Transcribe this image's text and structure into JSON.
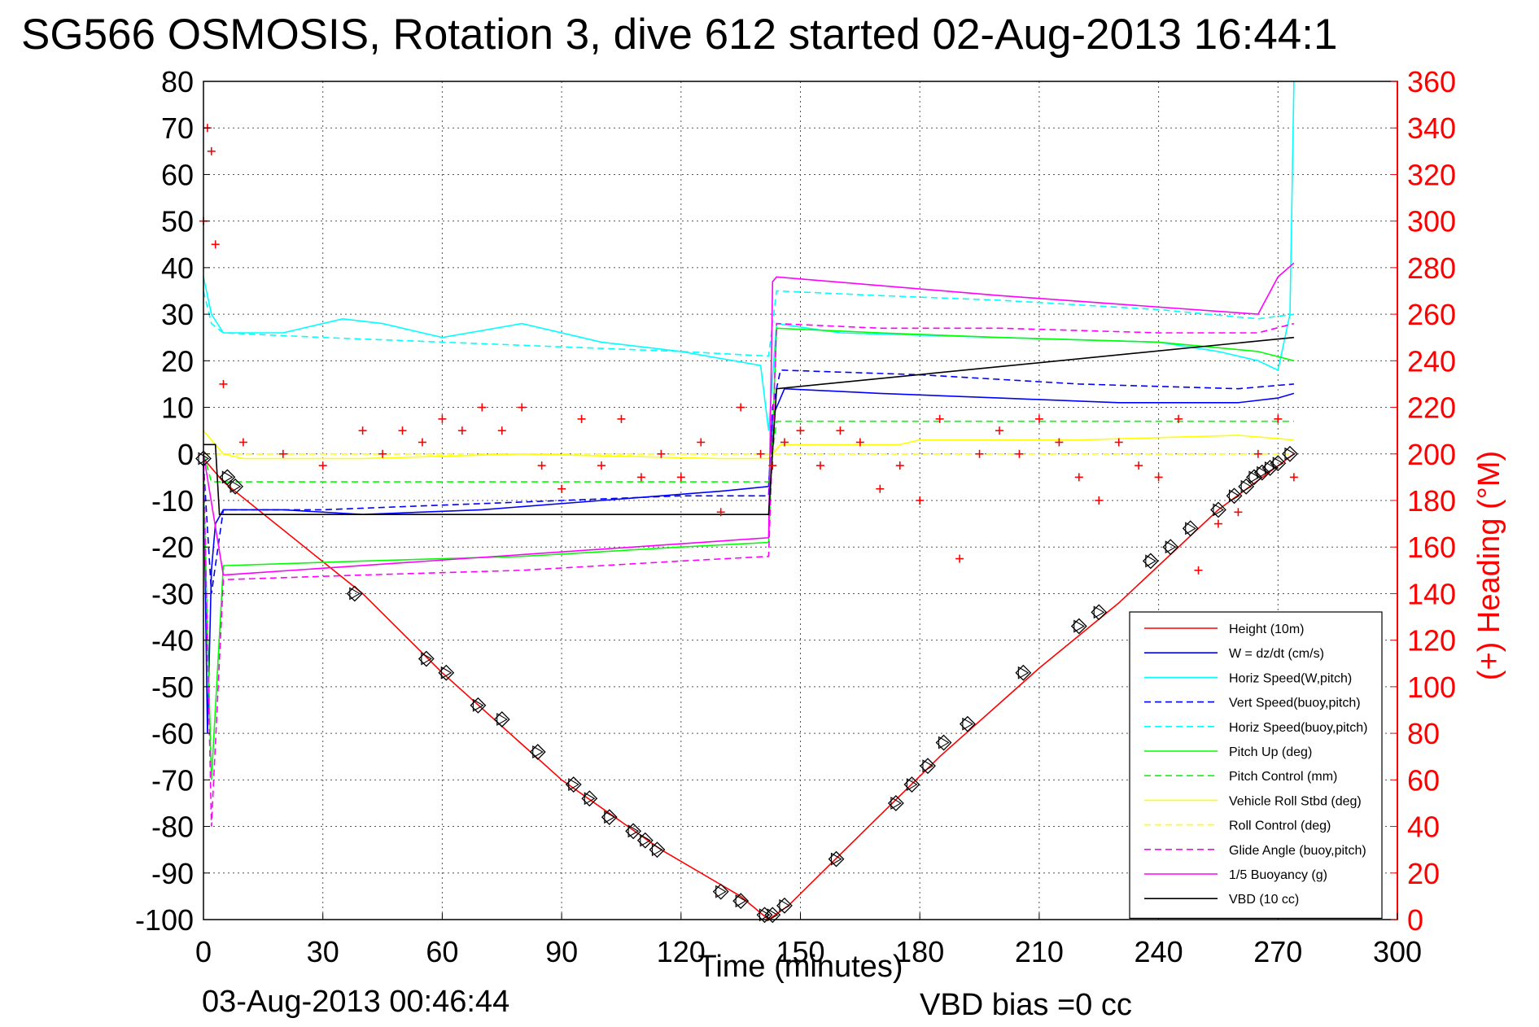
{
  "title": "SG566 OSMOSIS, Rotation 3, dive 612 started 02-Aug-2013 16:44:1",
  "footer": {
    "date": "03-Aug-2013 00:46:44",
    "vbd_bias": "VBD bias =0 cc"
  },
  "chart_data": {
    "type": "line",
    "xlabel": "Time (minutes)",
    "ylabel_right": "(+) Heading (°M)",
    "xlim": [
      0,
      300
    ],
    "ylim": [
      -100,
      80
    ],
    "ylim_right": [
      0,
      360
    ],
    "xticks": [
      0,
      30,
      60,
      90,
      120,
      150,
      180,
      210,
      240,
      270,
      300
    ],
    "yticks": [
      -100,
      -90,
      -80,
      -70,
      -60,
      -50,
      -40,
      -30,
      -20,
      -10,
      0,
      10,
      20,
      30,
      40,
      50,
      60,
      70,
      80
    ],
    "yticks_right": [
      0,
      20,
      40,
      60,
      80,
      100,
      120,
      140,
      160,
      180,
      200,
      220,
      240,
      260,
      280,
      300,
      320,
      340,
      360
    ],
    "grid": true,
    "legend_position": "bottom-right",
    "colors": {
      "red": "#ff0000",
      "blue": "#0000ff",
      "cyan": "#00ffff",
      "green": "#00ff00",
      "yellow": "#ffff00",
      "magenta": "#ff00ff",
      "black": "#000000"
    },
    "series": [
      {
        "name": "Height (10m)",
        "color": "#ff0000",
        "style": "solid",
        "x": [
          0,
          5,
          40,
          60,
          90,
          115,
          135,
          142,
          147,
          160,
          185,
          210,
          230,
          255,
          274
        ],
        "y": [
          -1,
          -6,
          -30,
          -47,
          -70,
          -85,
          -95,
          -100,
          -97,
          -86,
          -65,
          -46,
          -32,
          -12,
          0
        ]
      },
      {
        "name": "W = dz/dt (cm/s)",
        "color": "#0000ff",
        "style": "solid",
        "x": [
          0,
          1,
          2,
          3,
          5,
          20,
          40,
          70,
          100,
          130,
          142,
          143,
          146,
          170,
          200,
          230,
          260,
          270,
          274
        ],
        "y": [
          -2,
          -60,
          -25,
          -15,
          -12,
          -12,
          -13,
          -12,
          -10,
          -8,
          -7,
          8,
          14,
          13,
          12,
          11,
          11,
          12,
          13
        ]
      },
      {
        "name": "Horiz Speed(W,pitch)",
        "color": "#00ffff",
        "style": "solid",
        "x": [
          0,
          2,
          5,
          20,
          35,
          45,
          60,
          80,
          100,
          120,
          140,
          142,
          144,
          160,
          200,
          240,
          255,
          265,
          270,
          273,
          274
        ],
        "y": [
          38,
          30,
          26,
          26,
          29,
          28,
          25,
          28,
          24,
          22,
          19,
          5,
          28,
          26,
          25,
          24,
          22,
          20,
          18,
          30,
          80
        ]
      },
      {
        "name": "Vert Speed(buoy,pitch)",
        "color": "#0000ff",
        "style": "dashed",
        "x": [
          0,
          2,
          5,
          30,
          60,
          90,
          120,
          142,
          143,
          145,
          180,
          220,
          260,
          274
        ],
        "y": [
          -2,
          -30,
          -12,
          -12,
          -11,
          -10,
          -9,
          -9,
          10,
          18,
          17,
          15,
          14,
          15
        ]
      },
      {
        "name": "Horiz Speed(buoy,pitch)",
        "color": "#00ffff",
        "style": "dashed",
        "x": [
          0,
          2,
          5,
          30,
          60,
          90,
          120,
          142,
          144,
          170,
          200,
          240,
          265,
          274
        ],
        "y": [
          35,
          28,
          26,
          25,
          24,
          23,
          22,
          21,
          35,
          34,
          33,
          31,
          29,
          30
        ]
      },
      {
        "name": "Pitch Up (deg)",
        "color": "#00ff00",
        "style": "solid",
        "x": [
          0,
          2,
          5,
          40,
          80,
          120,
          142,
          144,
          170,
          200,
          240,
          265,
          274
        ],
        "y": [
          -5,
          -70,
          -24,
          -23,
          -22,
          -20,
          -19,
          27,
          26,
          25,
          24,
          22,
          20
        ]
      },
      {
        "name": "Pitch Control (mm)",
        "color": "#00ff00",
        "style": "dashed",
        "x": [
          0,
          2,
          4,
          142,
          144,
          274
        ],
        "y": [
          0,
          -6,
          -6,
          -6,
          7,
          7
        ]
      },
      {
        "name": "Vehicle Roll Stbd (deg)",
        "color": "#ffff00",
        "style": "solid",
        "x": [
          0,
          5,
          10,
          40,
          80,
          130,
          142,
          145,
          175,
          180,
          220,
          260,
          274
        ],
        "y": [
          5,
          0,
          -1,
          -1,
          0,
          -1,
          -1,
          2,
          2,
          3,
          3,
          4,
          3
        ]
      },
      {
        "name": "Roll Control (deg)",
        "color": "#ffff00",
        "style": "dashed",
        "x": [
          0,
          142,
          144,
          274
        ],
        "y": [
          0,
          0,
          0,
          0
        ]
      },
      {
        "name": "Glide Angle (buoy,pitch)",
        "color": "#ff00ff",
        "style": "dashed",
        "x": [
          0,
          2,
          5,
          40,
          80,
          120,
          142,
          144,
          170,
          200,
          240,
          265,
          274
        ],
        "y": [
          0,
          -80,
          -27,
          -26,
          -25,
          -23,
          -22,
          28,
          27,
          27,
          26,
          26,
          28
        ]
      },
      {
        "name": "1/5 Buoyancy (g)",
        "color": "#ff00ff",
        "style": "solid",
        "x": [
          0,
          5,
          142,
          143,
          144,
          200,
          265,
          270,
          274
        ],
        "y": [
          0,
          -26,
          -18,
          37,
          38,
          34,
          30,
          38,
          41
        ]
      },
      {
        "name": "VBD (10 cc)",
        "color": "#000000",
        "style": "solid",
        "x": [
          0,
          3,
          4,
          142,
          144,
          274
        ],
        "y": [
          2,
          2,
          -13,
          -13,
          14,
          25
        ]
      }
    ],
    "heading": {
      "name": "Heading",
      "color": "#ff0000",
      "marker": "+",
      "x": [
        0,
        1,
        2,
        3,
        5,
        10,
        20,
        30,
        40,
        45,
        50,
        55,
        60,
        65,
        70,
        75,
        80,
        85,
        90,
        95,
        100,
        105,
        110,
        115,
        120,
        125,
        130,
        135,
        140,
        143,
        146,
        150,
        155,
        160,
        165,
        170,
        175,
        180,
        185,
        190,
        195,
        200,
        205,
        210,
        215,
        220,
        225,
        230,
        235,
        240,
        245,
        250,
        255,
        260,
        265,
        270,
        274
      ],
      "y": [
        300,
        340,
        330,
        290,
        230,
        205,
        200,
        195,
        210,
        200,
        210,
        205,
        215,
        210,
        220,
        210,
        220,
        195,
        185,
        215,
        195,
        215,
        190,
        200,
        190,
        205,
        175,
        220,
        200,
        195,
        205,
        210,
        195,
        210,
        205,
        185,
        195,
        180,
        215,
        155,
        200,
        210,
        200,
        215,
        205,
        190,
        180,
        205,
        195,
        190,
        215,
        150,
        170,
        175,
        200,
        215,
        190
      ]
    },
    "markers": {
      "name": "diamond markers",
      "color": "#000000",
      "x": [
        0,
        6,
        8,
        38,
        56,
        61,
        69,
        75,
        84,
        93,
        97,
        102,
        108,
        111,
        114,
        130,
        135,
        141,
        143,
        146,
        159,
        174,
        178,
        182,
        186,
        192,
        206,
        220,
        225,
        238,
        243,
        248,
        255,
        259,
        262,
        264,
        266,
        268,
        270,
        273
      ],
      "y": [
        -1,
        -5,
        -7,
        -30,
        -44,
        -47,
        -54,
        -57,
        -64,
        -71,
        -74,
        -78,
        -81,
        -83,
        -85,
        -94,
        -96,
        -99,
        -99,
        -97,
        -87,
        -75,
        -71,
        -67,
        -62,
        -58,
        -47,
        -37,
        -34,
        -23,
        -20,
        -16,
        -12,
        -9,
        -7,
        -5,
        -4,
        -3,
        -2,
        0
      ]
    }
  }
}
